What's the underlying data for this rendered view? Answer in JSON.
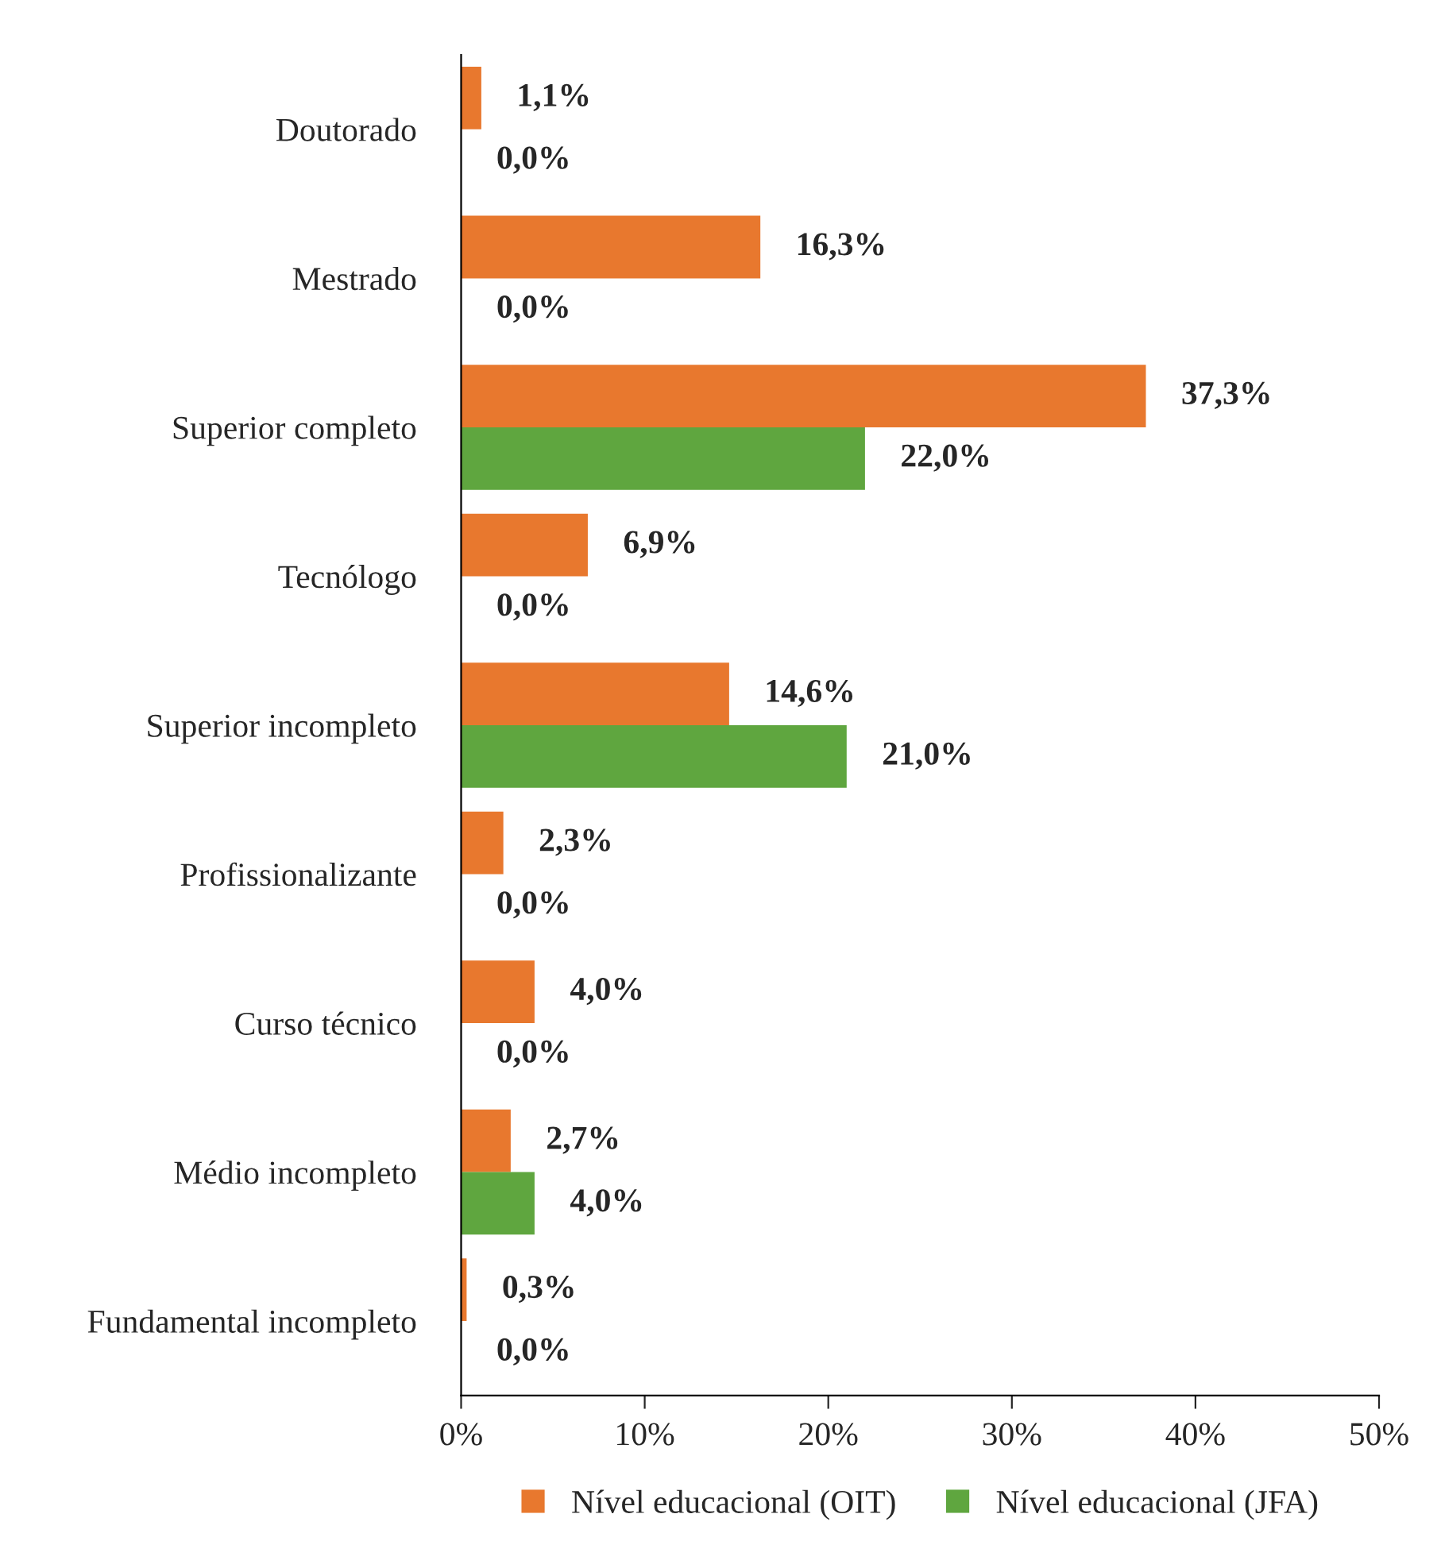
{
  "chart_data": {
    "type": "bar",
    "orientation": "horizontal",
    "categories": [
      "Doutorado",
      "Mestrado",
      "Superior completo",
      "Tecnólogo",
      "Superior incompleto",
      "Profissionalizante",
      "Curso técnico",
      "Médio incompleto",
      "Fundamental incompleto"
    ],
    "series": [
      {
        "name": "Nível educacional (OIT)",
        "color": "#e8782e",
        "values": [
          1.1,
          16.3,
          37.3,
          6.9,
          14.6,
          2.3,
          4.0,
          2.7,
          0.3
        ],
        "value_labels": [
          "1,1%",
          "16,3%",
          "37,3%",
          "6,9%",
          "14,6%",
          "2,3%",
          "4,0%",
          "2,7%",
          "0,3%"
        ]
      },
      {
        "name": "Nível educacional (JFA)",
        "color": "#5fa63f",
        "values": [
          0.0,
          0.0,
          22.0,
          0.0,
          21.0,
          0.0,
          0.0,
          4.0,
          0.0
        ],
        "value_labels": [
          "0,0%",
          "0,0%",
          "22,0%",
          "0,0%",
          "21,0%",
          "0,0%",
          "0,0%",
          "4,0%",
          "0,0%"
        ]
      }
    ],
    "xlim": [
      0,
      50
    ],
    "xticks": [
      {
        "value": 0,
        "label": "0%"
      },
      {
        "value": 10,
        "label": "10%"
      },
      {
        "value": 20,
        "label": "20%"
      },
      {
        "value": 30,
        "label": "30%"
      },
      {
        "value": 40,
        "label": "40%"
      },
      {
        "value": 50,
        "label": "50%"
      }
    ],
    "grid": false,
    "legend": "bottom"
  }
}
